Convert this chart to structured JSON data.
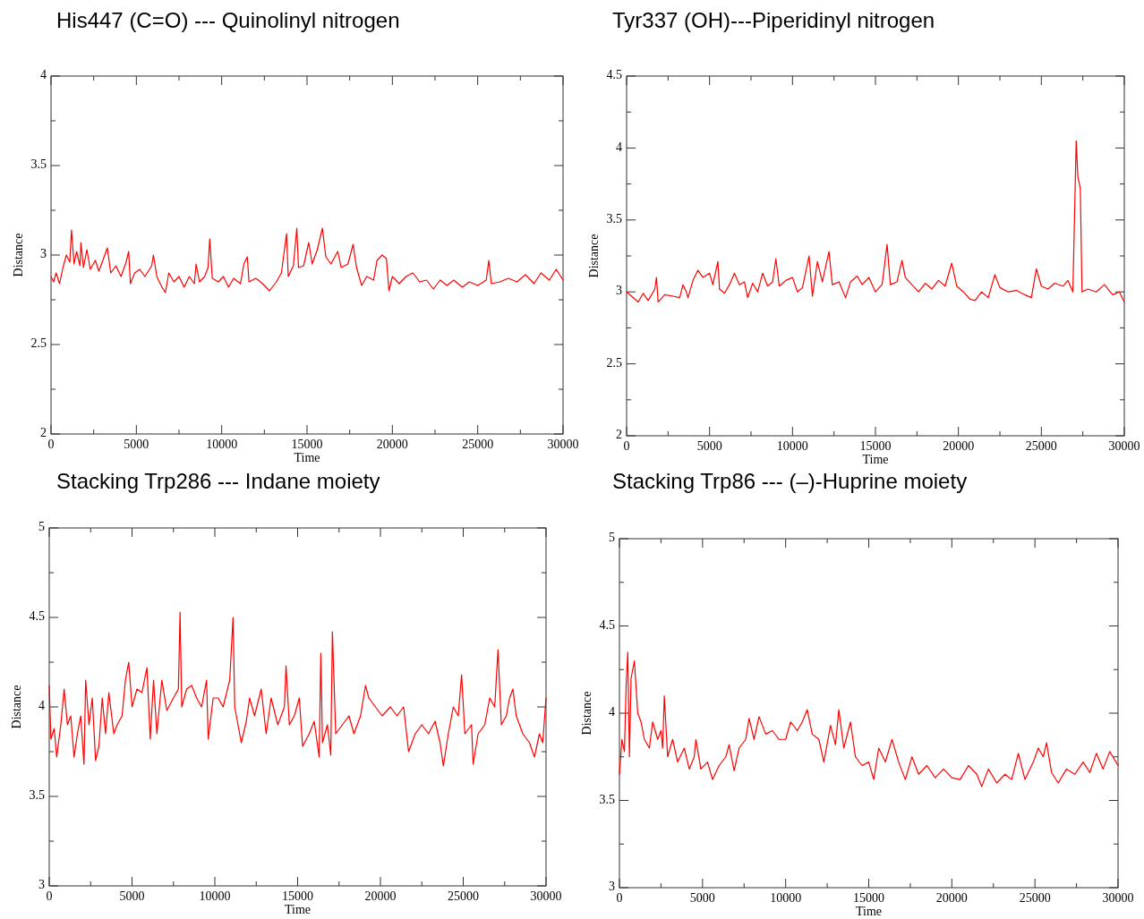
{
  "chart_data": [
    {
      "type": "line",
      "title": "His447 (C=O) --- Quinolinyl nitrogen",
      "xlabel": "Time",
      "ylabel": "Distance",
      "xlim": [
        0,
        30000
      ],
      "ylim": [
        2,
        4
      ],
      "xticks": [
        0,
        {
          "value": 2500,
          "label": null
        },
        5000,
        {
          "value": 7500,
          "label": null
        },
        10000,
        {
          "value": 12500,
          "label": null
        },
        15000,
        {
          "value": 17500,
          "label": null
        },
        20000,
        {
          "value": 22500,
          "label": null
        },
        25000,
        {
          "value": 27500,
          "label": null
        },
        30000
      ],
      "yticks": [
        2,
        {
          "value": 2.25,
          "label": null
        },
        2.5,
        {
          "value": 2.75,
          "label": null
        },
        3,
        {
          "value": 3.25,
          "label": null
        },
        3.5,
        {
          "value": 3.75,
          "label": null
        },
        4
      ],
      "series": [
        {
          "color": "#ff0000",
          "x": [
            0,
            150,
            300,
            500,
            700,
            900,
            1100,
            1200,
            1350,
            1500,
            1700,
            1750,
            1900,
            2100,
            2300,
            2600,
            2800,
            3000,
            3300,
            3500,
            3800,
            4100,
            4400,
            4550,
            4650,
            4900,
            5200,
            5500,
            5900,
            6000,
            6200,
            6500,
            6700,
            6900,
            7200,
            7500,
            7800,
            8100,
            8400,
            8500,
            8700,
            9000,
            9200,
            9300,
            9450,
            9800,
            10100,
            10400,
            10700,
            11100,
            11300,
            11500,
            11600,
            12000,
            12400,
            12800,
            13200,
            13500,
            13800,
            13900,
            14200,
            14400,
            14500,
            14800,
            15100,
            15300,
            15600,
            15900,
            16100,
            16400,
            16800,
            17000,
            17400,
            17700,
            17900,
            18200,
            18500,
            18900,
            19100,
            19400,
            19650,
            19800,
            20000,
            20400,
            20800,
            21200,
            21600,
            22000,
            22400,
            22800,
            23200,
            23600,
            24100,
            24500,
            25000,
            25500,
            25650,
            25800,
            26300,
            26800,
            27300,
            27800,
            28300,
            28700,
            29200,
            29600,
            30000
          ],
          "values": [
            2.88,
            2.85,
            2.9,
            2.84,
            2.93,
            3.0,
            2.96,
            3.14,
            2.95,
            3.02,
            2.94,
            3.07,
            2.93,
            3.03,
            2.92,
            2.97,
            2.91,
            2.96,
            3.04,
            2.9,
            2.94,
            2.88,
            2.96,
            3.02,
            2.84,
            2.9,
            2.92,
            2.88,
            2.94,
            3.0,
            2.88,
            2.82,
            2.79,
            2.9,
            2.85,
            2.88,
            2.82,
            2.88,
            2.84,
            2.95,
            2.85,
            2.88,
            2.93,
            3.09,
            2.87,
            2.85,
            2.88,
            2.82,
            2.87,
            2.84,
            2.95,
            2.99,
            2.85,
            2.87,
            2.84,
            2.8,
            2.85,
            2.9,
            3.12,
            2.88,
            2.94,
            3.15,
            2.93,
            2.94,
            3.07,
            2.95,
            3.03,
            3.15,
            2.99,
            2.95,
            3.02,
            2.93,
            2.95,
            3.06,
            2.93,
            2.83,
            2.88,
            2.86,
            2.97,
            3.0,
            2.98,
            2.8,
            2.88,
            2.84,
            2.88,
            2.9,
            2.85,
            2.86,
            2.81,
            2.86,
            2.83,
            2.86,
            2.82,
            2.85,
            2.83,
            2.86,
            2.97,
            2.84,
            2.85,
            2.87,
            2.85,
            2.89,
            2.84,
            2.9,
            2.86,
            2.92,
            2.86
          ]
        }
      ]
    },
    {
      "type": "line",
      "title": "Tyr337 (OH)---Piperidinyl nitrogen",
      "xlabel": "Time",
      "ylabel": "Distance",
      "xlim": [
        0,
        30000
      ],
      "ylim": [
        2,
        4.5
      ],
      "xticks": [
        0,
        {
          "value": 2500,
          "label": null
        },
        5000,
        {
          "value": 7500,
          "label": null
        },
        10000,
        {
          "value": 12500,
          "label": null
        },
        15000,
        {
          "value": 17500,
          "label": null
        },
        20000,
        {
          "value": 22500,
          "label": null
        },
        25000,
        {
          "value": 27500,
          "label": null
        },
        30000
      ],
      "yticks": [
        2,
        {
          "value": 2.25,
          "label": null
        },
        2.5,
        {
          "value": 2.75,
          "label": null
        },
        3,
        {
          "value": 3.25,
          "label": null
        },
        3.5,
        {
          "value": 3.75,
          "label": null
        },
        4,
        {
          "value": 4.25,
          "label": null
        },
        4.5
      ],
      "series": [
        {
          "color": "#ff0000",
          "x": [
            0,
            300,
            700,
            1000,
            1300,
            1700,
            1800,
            1900,
            2300,
            2800,
            3200,
            3400,
            3600,
            3700,
            4000,
            4300,
            4600,
            5000,
            5200,
            5500,
            5600,
            5900,
            6200,
            6500,
            6800,
            7100,
            7300,
            7600,
            7900,
            8200,
            8500,
            8800,
            9000,
            9200,
            9600,
            10000,
            10300,
            10600,
            11000,
            11200,
            11500,
            11800,
            12200,
            12400,
            12800,
            13200,
            13500,
            13900,
            14200,
            14600,
            15000,
            15400,
            15700,
            15900,
            16300,
            16600,
            16800,
            17200,
            17600,
            18000,
            18400,
            18800,
            19200,
            19600,
            19900,
            20300,
            20700,
            21000,
            21400,
            21800,
            22200,
            22500,
            23000,
            23500,
            24000,
            24400,
            24700,
            25000,
            25400,
            25800,
            26300,
            26600,
            26900,
            27100,
            27200,
            27350,
            27450,
            27800,
            28300,
            28800,
            29300,
            29700,
            30000
          ],
          "values": [
            3.0,
            2.97,
            2.93,
            2.99,
            2.94,
            3.02,
            3.1,
            2.93,
            2.98,
            2.97,
            2.96,
            3.05,
            3.0,
            2.96,
            3.08,
            3.15,
            3.1,
            3.13,
            3.05,
            3.21,
            3.02,
            2.99,
            3.05,
            3.13,
            3.05,
            3.07,
            2.96,
            3.06,
            3.0,
            3.13,
            3.04,
            3.07,
            3.23,
            3.04,
            3.08,
            3.1,
            3.0,
            3.03,
            3.25,
            2.97,
            3.21,
            3.07,
            3.28,
            3.05,
            3.07,
            2.96,
            3.07,
            3.11,
            3.05,
            3.1,
            3.0,
            3.05,
            3.33,
            3.05,
            3.07,
            3.22,
            3.1,
            3.05,
            3.0,
            3.06,
            3.02,
            3.08,
            3.04,
            3.2,
            3.04,
            3.0,
            2.95,
            2.94,
            3.0,
            2.96,
            3.12,
            3.03,
            3.0,
            3.01,
            2.98,
            2.96,
            3.16,
            3.04,
            3.02,
            3.06,
            3.04,
            3.08,
            3.0,
            4.05,
            3.8,
            3.72,
            3.0,
            3.02,
            3.0,
            3.05,
            2.98,
            3.0,
            2.93
          ]
        }
      ]
    },
    {
      "type": "line",
      "title": "Stacking Trp286 --- Indane moiety",
      "xlabel": "Time",
      "ylabel": "Distance",
      "xlim": [
        0,
        30000
      ],
      "ylim": [
        3,
        5
      ],
      "xticks": [
        0,
        {
          "value": 2500,
          "label": null
        },
        5000,
        {
          "value": 7500,
          "label": null
        },
        10000,
        {
          "value": 12500,
          "label": null
        },
        15000,
        {
          "value": 17500,
          "label": null
        },
        20000,
        {
          "value": 22500,
          "label": null
        },
        25000,
        {
          "value": 27500,
          "label": null
        },
        30000
      ],
      "yticks": [
        3,
        {
          "value": 3.25,
          "label": null
        },
        3.5,
        {
          "value": 3.75,
          "label": null
        },
        4,
        {
          "value": 4.25,
          "label": null
        },
        4.5,
        {
          "value": 4.75,
          "label": null
        },
        5
      ],
      "series": [
        {
          "color": "#ff0000",
          "x": [
            0,
            100,
            300,
            450,
            700,
            900,
            1100,
            1300,
            1500,
            1700,
            1900,
            2100,
            2200,
            2400,
            2600,
            2800,
            3000,
            3200,
            3400,
            3600,
            3900,
            4100,
            4400,
            4600,
            4800,
            5000,
            5300,
            5600,
            5900,
            6100,
            6300,
            6500,
            6800,
            7100,
            7500,
            7800,
            7900,
            8000,
            8300,
            8600,
            8900,
            9200,
            9500,
            9600,
            9900,
            10200,
            10500,
            10900,
            11100,
            11200,
            11400,
            11600,
            11900,
            12100,
            12400,
            12800,
            13100,
            13400,
            13800,
            14200,
            14300,
            14500,
            14800,
            15100,
            15300,
            15700,
            16000,
            16300,
            16400,
            16500,
            16800,
            17000,
            17100,
            17300,
            17700,
            18100,
            18400,
            18800,
            19100,
            19300,
            19700,
            20100,
            20600,
            21000,
            21400,
            21700,
            22100,
            22500,
            22900,
            23300,
            23600,
            23800,
            24100,
            24400,
            24700,
            24900,
            25100,
            25500,
            25600,
            25900,
            26300,
            26600,
            26900,
            27100,
            27300,
            27600,
            27800,
            28000,
            28200,
            28600,
            29000,
            29300,
            29600,
            29800,
            30000
          ],
          "values": [
            4.12,
            3.82,
            3.88,
            3.72,
            3.9,
            4.1,
            3.9,
            3.95,
            3.72,
            3.85,
            3.95,
            3.68,
            4.15,
            3.9,
            4.05,
            3.7,
            3.78,
            4.05,
            3.85,
            4.08,
            3.85,
            3.9,
            3.95,
            4.15,
            4.25,
            4.0,
            4.1,
            4.08,
            4.22,
            3.82,
            4.15,
            3.85,
            4.15,
            3.98,
            4.05,
            4.1,
            4.53,
            4.0,
            4.1,
            4.12,
            4.05,
            4.0,
            4.15,
            3.82,
            4.05,
            4.05,
            4.0,
            4.15,
            4.5,
            4.0,
            3.9,
            3.8,
            3.92,
            4.05,
            3.95,
            4.1,
            3.85,
            4.05,
            3.9,
            4.0,
            4.23,
            3.9,
            3.95,
            4.05,
            3.78,
            3.85,
            3.92,
            3.72,
            4.3,
            3.8,
            3.9,
            3.73,
            4.42,
            3.85,
            3.9,
            3.95,
            3.85,
            3.95,
            4.12,
            4.05,
            4.0,
            3.95,
            4.0,
            3.95,
            4.0,
            3.75,
            3.85,
            3.9,
            3.85,
            3.92,
            3.8,
            3.67,
            3.85,
            4.0,
            3.95,
            4.18,
            3.85,
            3.9,
            3.68,
            3.85,
            3.9,
            4.05,
            4.0,
            4.32,
            3.9,
            3.95,
            4.05,
            4.1,
            3.95,
            3.85,
            3.8,
            3.72,
            3.85,
            3.8,
            4.05
          ]
        }
      ]
    },
    {
      "type": "line",
      "title": "Stacking Trp86 --- (–)-Huprine moiety",
      "xlabel": "Time",
      "ylabel": "Distance",
      "xlim": [
        0,
        30000
      ],
      "ylim": [
        3,
        5
      ],
      "xticks": [
        0,
        {
          "value": 2500,
          "label": null
        },
        5000,
        {
          "value": 7500,
          "label": null
        },
        10000,
        {
          "value": 12500,
          "label": null
        },
        15000,
        {
          "value": 17500,
          "label": null
        },
        20000,
        {
          "value": 22500,
          "label": null
        },
        25000,
        {
          "value": 27500,
          "label": null
        },
        30000
      ],
      "yticks": [
        3,
        {
          "value": 3.25,
          "label": null
        },
        3.5,
        {
          "value": 3.75,
          "label": null
        },
        4,
        {
          "value": 4.25,
          "label": null
        },
        4.5,
        {
          "value": 4.75,
          "label": null
        },
        5
      ],
      "series": [
        {
          "color": "#ff0000",
          "x": [
            0,
            150,
            300,
            400,
            500,
            600,
            700,
            900,
            1100,
            1300,
            1500,
            1800,
            2000,
            2300,
            2500,
            2600,
            2700,
            2900,
            3200,
            3500,
            3900,
            4200,
            4500,
            4600,
            4900,
            5300,
            5600,
            6000,
            6400,
            6600,
            6900,
            7200,
            7600,
            7800,
            8100,
            8400,
            8800,
            9200,
            9600,
            10000,
            10300,
            10700,
            11000,
            11300,
            11600,
            12000,
            12300,
            12700,
            13000,
            13200,
            13500,
            13900,
            14200,
            14600,
            15000,
            15300,
            15600,
            16000,
            16400,
            16800,
            17200,
            17600,
            18000,
            18500,
            19000,
            19500,
            20000,
            20500,
            21000,
            21500,
            21800,
            22200,
            22700,
            23200,
            23600,
            24000,
            24400,
            24900,
            25200,
            25500,
            25700,
            26000,
            26400,
            26900,
            27400,
            27900,
            28300,
            28700,
            29100,
            29500,
            30000
          ],
          "values": [
            3.65,
            3.85,
            3.78,
            4.15,
            4.35,
            3.75,
            4.2,
            4.3,
            4.0,
            3.95,
            3.85,
            3.8,
            3.95,
            3.85,
            3.9,
            3.8,
            4.1,
            3.75,
            3.85,
            3.72,
            3.8,
            3.68,
            3.75,
            3.85,
            3.68,
            3.72,
            3.62,
            3.7,
            3.75,
            3.82,
            3.67,
            3.8,
            3.85,
            3.97,
            3.85,
            3.98,
            3.88,
            3.9,
            3.85,
            3.85,
            3.95,
            3.9,
            3.95,
            4.02,
            3.88,
            3.85,
            3.72,
            3.93,
            3.82,
            4.02,
            3.8,
            3.95,
            3.75,
            3.7,
            3.72,
            3.62,
            3.8,
            3.72,
            3.85,
            3.72,
            3.62,
            3.75,
            3.65,
            3.7,
            3.63,
            3.68,
            3.63,
            3.62,
            3.7,
            3.65,
            3.58,
            3.68,
            3.6,
            3.65,
            3.62,
            3.77,
            3.62,
            3.72,
            3.8,
            3.75,
            3.83,
            3.66,
            3.6,
            3.68,
            3.65,
            3.72,
            3.66,
            3.77,
            3.68,
            3.78,
            3.7
          ]
        }
      ]
    }
  ]
}
